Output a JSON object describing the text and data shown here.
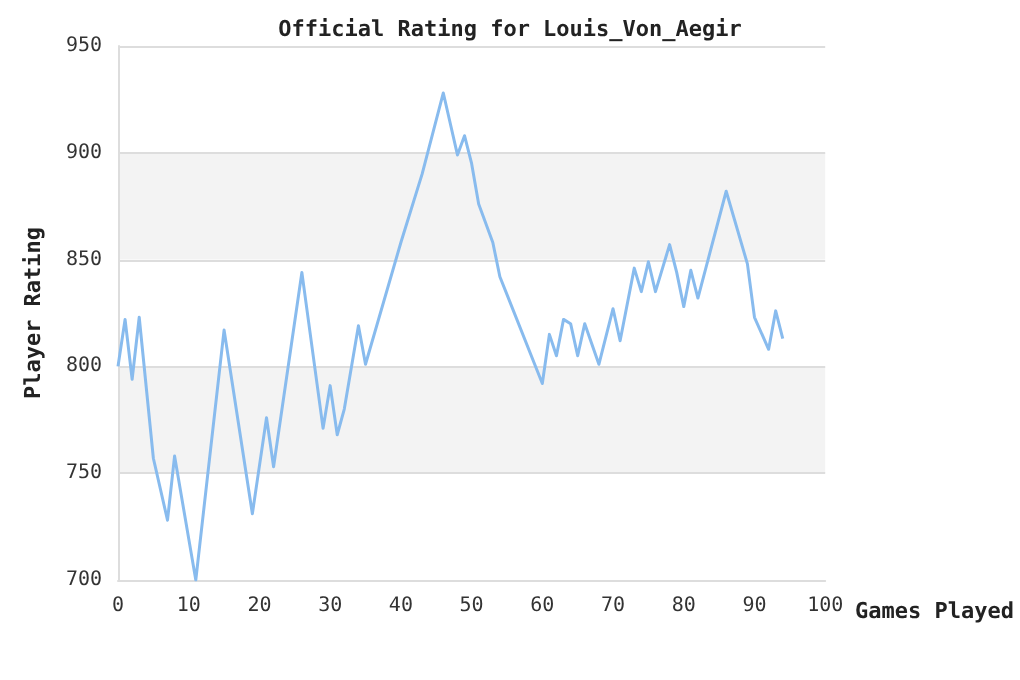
{
  "chart_data": {
    "type": "line",
    "title": "Official Rating for Louis_Von_Aegir",
    "xlabel": "Games Played",
    "ylabel": "Player Rating",
    "series": [
      {
        "color": "#88bbee",
        "x": [
          0,
          1,
          2,
          3,
          5,
          7,
          8,
          11,
          15,
          19,
          21,
          22,
          26,
          29,
          30,
          31,
          32,
          34,
          35,
          40,
          43,
          46,
          48,
          49,
          50,
          51,
          53,
          54,
          60,
          61,
          62,
          63,
          64,
          65,
          66,
          68,
          70,
          71,
          73,
          74,
          75,
          76,
          78,
          79,
          80,
          81,
          82,
          86,
          89,
          90,
          92,
          93,
          94
        ],
        "values": [
          800,
          822,
          794,
          823,
          757,
          728,
          758,
          700,
          817,
          731,
          776,
          753,
          844,
          771,
          791,
          768,
          780,
          819,
          801,
          858,
          890,
          928,
          899,
          908,
          895,
          876,
          858,
          842,
          792,
          815,
          805,
          822,
          820,
          805,
          820,
          801,
          827,
          812,
          846,
          835,
          849,
          835,
          857,
          844,
          828,
          845,
          832,
          882,
          848,
          823,
          808,
          826,
          813
        ]
      }
    ],
    "xlim": [
      0,
      100
    ],
    "xticks": [
      0,
      10,
      20,
      30,
      40,
      50,
      60,
      70,
      80,
      90,
      100
    ],
    "ylim": [
      700,
      950
    ],
    "yticks": [
      700,
      750,
      800,
      850,
      900,
      950
    ],
    "grid": "y",
    "marker": "none",
    "line_style": "solid"
  }
}
